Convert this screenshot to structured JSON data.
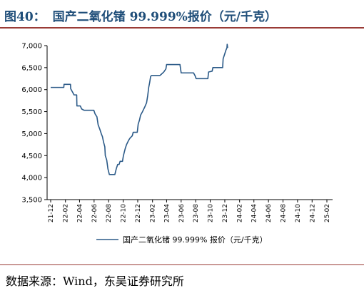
{
  "figure": {
    "number": "图40：",
    "title": "国产二氧化锗 99.999%报价（元/千克）",
    "source": "数据来源：Wind，东吴证券研究所"
  },
  "colors": {
    "line": "#2b5a88",
    "title": "#1f4e79",
    "rule": "#9a3b36"
  },
  "chart_data": {
    "type": "line",
    "title": "",
    "xlabel": "",
    "ylabel": "",
    "ylim": [
      3500,
      7000
    ],
    "y_ticks": [
      "3,500",
      "4,000",
      "4,500",
      "5,000",
      "5,500",
      "6,000",
      "6,500",
      "7,000"
    ],
    "x_ticks": [
      "21-12",
      "22-02",
      "22-04",
      "22-06",
      "22-08",
      "22-10",
      "22-12",
      "23-02",
      "23-04",
      "23-06",
      "23-08",
      "23-10",
      "23-12",
      "24-02",
      "24-04",
      "24-06",
      "24-08",
      "24-10",
      "24-12",
      "25-02"
    ],
    "grid": false,
    "legend_position": "bottom",
    "series": [
      {
        "name": "国产二氧化锗 99.999% 报价（元/千克）",
        "points": [
          [
            "2021-12-01",
            6050
          ],
          [
            "2022-01-25",
            6050
          ],
          [
            "2022-01-26",
            6120
          ],
          [
            "2022-02-22",
            6120
          ],
          [
            "2022-02-23",
            6020
          ],
          [
            "2022-03-02",
            5950
          ],
          [
            "2022-03-09",
            5880
          ],
          [
            "2022-03-20",
            5880
          ],
          [
            "2022-03-21",
            5630
          ],
          [
            "2022-04-04",
            5630
          ],
          [
            "2022-04-10",
            5560
          ],
          [
            "2022-04-20",
            5530
          ],
          [
            "2022-05-31",
            5530
          ],
          [
            "2022-06-05",
            5450
          ],
          [
            "2022-06-13",
            5380
          ],
          [
            "2022-06-18",
            5200
          ],
          [
            "2022-06-25",
            5100
          ],
          [
            "2022-07-01",
            5000
          ],
          [
            "2022-07-06",
            4930
          ],
          [
            "2022-07-11",
            4800
          ],
          [
            "2022-07-16",
            4700
          ],
          [
            "2022-07-18",
            4500
          ],
          [
            "2022-07-24",
            4400
          ],
          [
            "2022-07-29",
            4200
          ],
          [
            "2022-08-04",
            4070
          ],
          [
            "2022-08-27",
            4070
          ],
          [
            "2022-09-02",
            4200
          ],
          [
            "2022-09-08",
            4300
          ],
          [
            "2022-09-14",
            4300
          ],
          [
            "2022-09-18",
            4370
          ],
          [
            "2022-09-28",
            4370
          ],
          [
            "2022-10-02",
            4500
          ],
          [
            "2022-10-09",
            4650
          ],
          [
            "2022-10-15",
            4750
          ],
          [
            "2022-10-24",
            4850
          ],
          [
            "2022-10-30",
            4900
          ],
          [
            "2022-11-08",
            4950
          ],
          [
            "2022-11-12",
            5030
          ],
          [
            "2022-11-29",
            5030
          ],
          [
            "2022-12-03",
            5220
          ],
          [
            "2022-12-08",
            5300
          ],
          [
            "2022-12-13",
            5420
          ],
          [
            "2022-12-21",
            5500
          ],
          [
            "2022-12-30",
            5600
          ],
          [
            "2023-01-07",
            5700
          ],
          [
            "2023-01-12",
            5870
          ],
          [
            "2023-01-16",
            6050
          ],
          [
            "2023-01-20",
            6160
          ],
          [
            "2023-01-24",
            6300
          ],
          [
            "2023-01-28",
            6320
          ],
          [
            "2023-03-04",
            6320
          ],
          [
            "2023-03-10",
            6350
          ],
          [
            "2023-03-20",
            6400
          ],
          [
            "2023-03-29",
            6470
          ],
          [
            "2023-04-01",
            6570
          ],
          [
            "2023-05-15",
            6570
          ],
          [
            "2023-05-27",
            6570
          ],
          [
            "2023-06-01",
            6380
          ],
          [
            "2023-07-23",
            6380
          ],
          [
            "2023-07-29",
            6320
          ],
          [
            "2023-08-03",
            6250
          ],
          [
            "2023-09-21",
            6250
          ],
          [
            "2023-09-24",
            6400
          ],
          [
            "2023-10-09",
            6420
          ],
          [
            "2023-10-12",
            6500
          ],
          [
            "2023-11-22",
            6500
          ],
          [
            "2023-11-24",
            6700
          ],
          [
            "2023-11-30",
            6800
          ],
          [
            "2023-12-06",
            6900
          ],
          [
            "2023-12-10",
            6950
          ],
          [
            "2023-12-11",
            7030
          ],
          [
            "2023-12-13",
            6950
          ]
        ]
      }
    ]
  }
}
